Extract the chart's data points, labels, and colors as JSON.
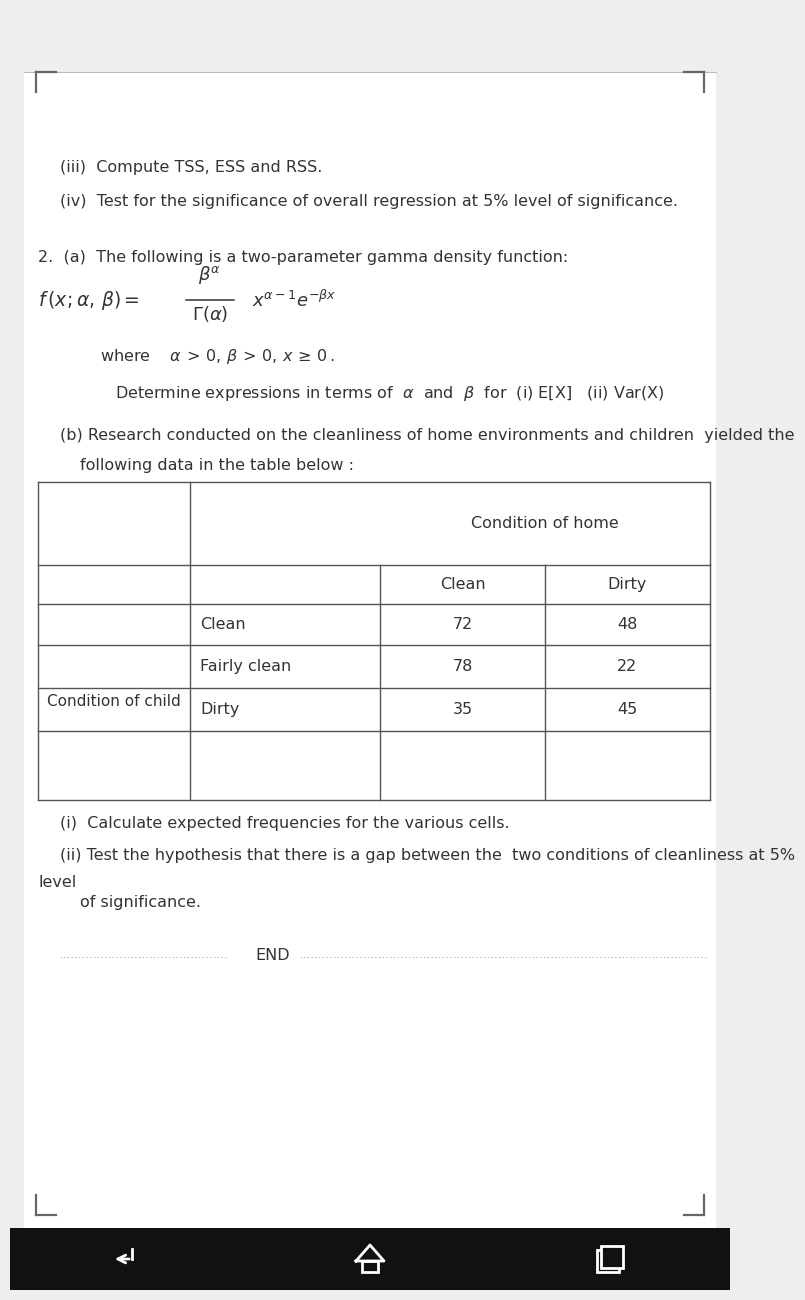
{
  "bg_color": "#eeeeee",
  "page_bg": "#ffffff",
  "text_color": "#333333",
  "line_iii": "(iii)  Compute TSS, ESS and RSS.",
  "line_iv": "(iv)  Test for the significance of overall regression at 5% level of significance.",
  "q2a_text": "2.  (a)  The following is a two-parameter gamma density function:",
  "where_line": "where    α >0, β >0, x≥0 .",
  "determine_text": "Determine expressions in terms of  α  and  β  for  (i) E[X]   (ii) Var(X)",
  "q2b_line1": "(b) Research conducted on the cleanliness of home environments and children  yielded the",
  "q2b_line2": "following data in the table below :",
  "table_header_home": "Condition of home",
  "table_col_clean": "Clean",
  "table_col_dirty": "Dirty",
  "table_row_label": "Condition of child",
  "table_rows": [
    {
      "label": "Clean",
      "clean": "72",
      "dirty": "48"
    },
    {
      "label": "Fairly clean",
      "clean": "78",
      "dirty": "22"
    },
    {
      "label": "Dirty",
      "clean": "35",
      "dirty": "45"
    }
  ],
  "q_i_text": "(i)  Calculate expected frequencies for the various cells.",
  "q_ii_line1": "(ii) Test the hypothesis that there is a gap between the  two conditions of cleanliness at 5%",
  "q_ii_line2": "level",
  "q_ii_line3": "    of significance.",
  "end_text": "END",
  "table_border_color": "#555555",
  "font_size": 11.5,
  "nav_bar_color": "#111111"
}
